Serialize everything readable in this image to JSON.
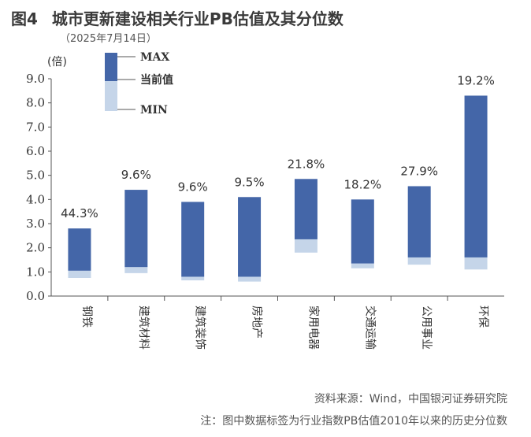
{
  "header": {
    "figure_label": "图4",
    "title": "城市更新建设相关行业PB估值及其分位数",
    "subtitle": "（2025年7月14日）"
  },
  "footer": {
    "source": "资料来源：Wind，中国银河证券研究院",
    "note": "注：图中数据标签为行业指数PB估值2010年以来的历史分位数"
  },
  "colors": {
    "upper_bar": "#4466a8",
    "lower_bar": "#c5d5e9",
    "axis": "#555555"
  },
  "chart_data": {
    "type": "bar",
    "subtype": "floating range (min–current–max)",
    "ylabel": "(倍)",
    "ylim": [
      0,
      9
    ],
    "yticks": [
      "0.0",
      "1.0",
      "2.0",
      "3.0",
      "4.0",
      "5.0",
      "6.0",
      "7.0",
      "8.0",
      "9.0"
    ],
    "legend": [
      "MAX",
      "当前值",
      "MIN"
    ],
    "legend_position": "top-left",
    "categories": [
      "钢铁",
      "建筑材料",
      "建筑装饰",
      "房地产",
      "家用电器",
      "交通运输",
      "公用事业",
      "环保"
    ],
    "max": [
      2.8,
      4.4,
      3.9,
      4.1,
      4.85,
      4.0,
      4.55,
      8.3
    ],
    "current": [
      1.05,
      1.2,
      0.8,
      0.8,
      2.35,
      1.35,
      1.6,
      1.6
    ],
    "min": [
      0.75,
      0.95,
      0.65,
      0.6,
      1.8,
      1.15,
      1.3,
      1.1
    ],
    "labels": [
      "44.3%",
      "9.6%",
      "9.6%",
      "9.5%",
      "21.8%",
      "18.2%",
      "27.9%",
      "19.2%"
    ]
  }
}
